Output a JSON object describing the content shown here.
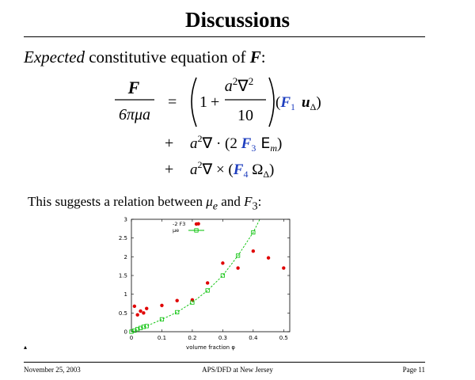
{
  "slide": {
    "title": "Discussions",
    "intro_word1": "Expected",
    "intro_rest": " constitutive equation of ",
    "intro_var": "F",
    "intro_colon": ":"
  },
  "equation": {
    "lhs_num": "F",
    "lhs_den": "6πμa",
    "equals": "=",
    "plus": "+",
    "one": "1",
    "frac_num": "a",
    "frac_num_exp": "2",
    "nabla": "∇",
    "nabla_exp": "2",
    "frac_den": "10",
    "term1_F": "F",
    "term1_sub": "1",
    "term1_u": "u",
    "term1_u_sub": "Δ",
    "term2_a": "a",
    "term2_a_exp": "2",
    "term2_op": "∇ · (2 ",
    "term2_F": "F",
    "term2_sub": "3",
    "term2_E": " E",
    "term2_E_sub": "m",
    "term2_close": ")",
    "term3_a": "a",
    "term3_a_exp": "2",
    "term3_op": "∇ × (",
    "term3_F": "F",
    "term3_sub": "4",
    "term3_Omega": " Ω",
    "term3_Omega_sub": "Δ",
    "term3_close": ")",
    "open_paren": "(",
    "close_paren": ")"
  },
  "suggestion": {
    "text_a": "This suggests a relation between ",
    "mu": "μ",
    "mu_sub": "e",
    "text_b": " and ",
    "F": "F",
    "F_sub": "3",
    "colon": ":"
  },
  "colors": {
    "F_blue": "#1f3fbf",
    "points_red": "#e00000",
    "fit_green": "#00c000"
  },
  "chart_data": {
    "type": "scatter",
    "xlabel": "volume fraction φ",
    "ylabel": "",
    "xlim": [
      0,
      0.52
    ],
    "ylim": [
      0,
      3
    ],
    "x_ticks": [
      "0",
      "0.1",
      "0.2",
      "0.3",
      "0.4",
      "0.5"
    ],
    "y_ticks": [
      "0",
      "0.5",
      "1",
      "1.5",
      "2",
      "2.5",
      "3"
    ],
    "legend_position": "top-center",
    "series": [
      {
        "name": "-2 F3",
        "style": "filled-point",
        "x": [
          0.01,
          0.02,
          0.03,
          0.04,
          0.05,
          0.1,
          0.15,
          0.2,
          0.22,
          0.25,
          0.3,
          0.35,
          0.4,
          0.45,
          0.5
        ],
        "y": [
          0.68,
          0.45,
          0.55,
          0.5,
          0.62,
          0.7,
          0.83,
          0.85,
          2.88,
          1.3,
          1.83,
          1.7,
          2.15,
          1.97,
          1.7
        ]
      },
      {
        "name": "μe",
        "style": "open-square-line",
        "x": [
          0.0,
          0.01,
          0.02,
          0.03,
          0.04,
          0.05,
          0.1,
          0.15,
          0.2,
          0.25,
          0.3,
          0.35,
          0.4
        ],
        "y": [
          0.0,
          0.03,
          0.07,
          0.1,
          0.13,
          0.15,
          0.33,
          0.52,
          0.78,
          1.1,
          1.5,
          2.03,
          2.65
        ]
      }
    ]
  },
  "misc": {
    "tiny_mark": "▴"
  },
  "footer": {
    "date": "November 25, 2003",
    "venue": "APS/DFD at New Jersey",
    "page": "Page 11"
  }
}
